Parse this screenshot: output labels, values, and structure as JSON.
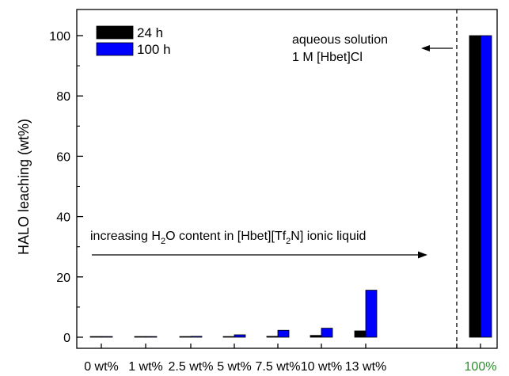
{
  "chart_data": {
    "type": "bar",
    "categories": [
      "0 wt%",
      "1 wt%",
      "2.5 wt%",
      "5 wt%",
      "7.5 wt%",
      "10 wt%",
      "13 wt%",
      "100%"
    ],
    "category_colors": [
      "#000000",
      "#000000",
      "#000000",
      "#000000",
      "#000000",
      "#000000",
      "#000000",
      "#2e8b2e"
    ],
    "series": [
      {
        "name": "24 h",
        "color": "#000000",
        "values": [
          0.1,
          0.1,
          0.1,
          0.2,
          0.3,
          0.6,
          2.1,
          100
        ]
      },
      {
        "name": "100 h",
        "color": "#0000ff",
        "values": [
          0.2,
          0.2,
          0.3,
          0.8,
          2.3,
          3.0,
          15.6,
          100
        ]
      }
    ],
    "ylabel": "HALO leaching (wt%)",
    "xlabel": "",
    "ylim": [
      0,
      108
    ],
    "yticks": [
      0,
      20,
      40,
      60,
      80,
      100
    ],
    "legend_position": "top-left",
    "grid": false,
    "annotations": {
      "arrow_text_main": "increasing H",
      "arrow_text_sub1": "2",
      "arrow_text_mid": "O content in [Hbet][Tf",
      "arrow_text_sub2": "2",
      "arrow_text_end": "N] ionic liquid",
      "aqueous_line1": "aqueous solution",
      "aqueous_line2": "1 M [Hbet]Cl"
    }
  }
}
